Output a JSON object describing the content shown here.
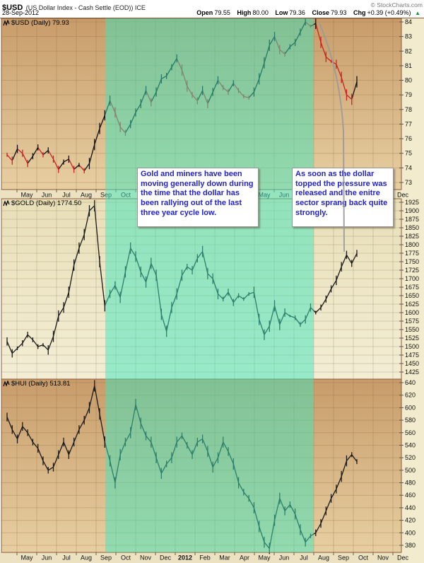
{
  "header": {
    "symbol": "$USD",
    "description": "(US Dollar Index - Cash Settle (EOD)) ICE",
    "copyright": "© StockCharts.com",
    "date": "28-Sep-2012",
    "quote": {
      "open_label": "Open",
      "open": "79.55",
      "high_label": "High",
      "high": "80.00",
      "low_label": "Low",
      "low": "79.36",
      "close_label": "Close",
      "close": "79.93",
      "chg_label": "Chg",
      "chg": "+0.39 (+0.49%)",
      "direction": "up"
    }
  },
  "annotations": {
    "box1_text": "Gold and miners have been moving generally down during the time that the dollar has been rallying out of the last three year cycle low.",
    "box2_text": "As soon as the dollar topped the pressure was released and the enitre sector sprang back quite strongly.",
    "text_color": "#2323cd",
    "highlight_band": {
      "from": "mid-Sep-2011",
      "to": "Aug-2012",
      "color": "rgba(62,230,190,0.5)"
    },
    "pointer_line": {
      "desc": "gray curve from dollar top down to gold breakout",
      "color": "#9a9a9a"
    }
  },
  "colors": {
    "tan_top": "#c89c6a",
    "tan_bottom": "#e7cfa2",
    "cream_top": "#e8dfb8",
    "cream_bottom": "#f3edd5",
    "axis_row_bg": "#ece2c2",
    "label_col_bg": "#f2ebcd",
    "border": "#8d5a36",
    "grid_tan": "rgba(140,108,60,0.30)",
    "grid_cream": "rgba(148,138,92,0.32)",
    "candle_up": "#111111",
    "candle_down": "#cc2222",
    "candle_dark": "#1a1a1a",
    "tick_text": "#111111"
  },
  "x_axis": {
    "months": [
      "May",
      "Jun",
      "Jul",
      "Aug",
      "Sep",
      "Oct",
      "Nov",
      "Dec",
      "2012",
      "Feb",
      "Mar",
      "Apr",
      "May",
      "Jun",
      "Jul",
      "Aug",
      "Sep",
      "Oct",
      "Nov",
      "Dec"
    ],
    "bold_index": 8
  },
  "chart_data": [
    {
      "type": "candlestick",
      "panel_label": "$USD (Daily) 79.93",
      "symbol": "$USD",
      "last": 79.93,
      "ylim": [
        72.8,
        84.25
      ],
      "yticks": [
        84,
        83,
        82,
        81,
        80,
        79,
        78,
        77,
        76,
        75,
        74,
        73
      ],
      "x_span": [
        "May-2011",
        "28-Sep-2012"
      ],
      "legend_position": "top-left",
      "grid": true,
      "values": [
        74.9,
        74.5,
        75.3,
        75.0,
        74.3,
        74.8,
        75.4,
        74.9,
        75.2,
        74.6,
        73.9,
        74.4,
        74.6,
        73.9,
        74.2,
        73.8,
        74.3,
        75.6,
        76.7,
        77.6,
        78.6,
        77.8,
        76.8,
        76.4,
        77.0,
        77.8,
        78.4,
        79.3,
        78.5,
        79.2,
        80.1,
        80.3,
        80.9,
        81.5,
        80.7,
        79.6,
        79.0,
        78.6,
        79.3,
        78.4,
        79.2,
        80.0,
        79.5,
        79.2,
        79.8,
        79.3,
        78.9,
        78.8,
        79.2,
        80.1,
        81.2,
        82.4,
        83.0,
        82.1,
        81.8,
        82.3,
        82.6,
        83.3,
        84.0,
        83.7,
        83.9,
        82.6,
        81.6,
        81.3,
        81.1,
        80.2,
        79.0,
        78.7,
        79.9
      ]
    },
    {
      "type": "candlestick",
      "panel_label": "$GOLD (Daily) 1774.50",
      "symbol": "$GOLD",
      "last": 1774.5,
      "ylim": [
        1410,
        1937
      ],
      "yticks": [
        1925,
        1900,
        1875,
        1850,
        1825,
        1800,
        1775,
        1750,
        1725,
        1700,
        1675,
        1650,
        1625,
        1600,
        1575,
        1550,
        1525,
        1500,
        1475,
        1450,
        1425
      ],
      "x_span": [
        "May-2011",
        "28-Sep-2012"
      ],
      "legend_position": "top-left",
      "grid": true,
      "values": [
        1515,
        1480,
        1495,
        1510,
        1535,
        1520,
        1500,
        1505,
        1490,
        1530,
        1590,
        1615,
        1660,
        1740,
        1790,
        1830,
        1900,
        1915,
        1750,
        1620,
        1655,
        1680,
        1645,
        1720,
        1790,
        1765,
        1720,
        1690,
        1745,
        1710,
        1595,
        1545,
        1615,
        1655,
        1710,
        1735,
        1725,
        1760,
        1780,
        1715,
        1700,
        1655,
        1640,
        1660,
        1630,
        1650,
        1640,
        1655,
        1660,
        1580,
        1535,
        1560,
        1620,
        1565,
        1600,
        1590,
        1585,
        1565,
        1580,
        1615,
        1600,
        1615,
        1640,
        1670,
        1695,
        1735,
        1770,
        1745,
        1774.5
      ]
    },
    {
      "type": "candlestick",
      "panel_label": "$HUI (Daily) 513.81",
      "symbol": "$HUI",
      "last": 513.81,
      "ylim": [
        372,
        646
      ],
      "yticks": [
        640,
        620,
        600,
        580,
        560,
        540,
        520,
        500,
        480,
        460,
        440,
        420,
        400,
        380
      ],
      "x_span": [
        "May-2011",
        "28-Sep-2012"
      ],
      "legend_position": "top-left",
      "grid": true,
      "values": [
        585,
        565,
        550,
        570,
        560,
        545,
        535,
        515,
        500,
        505,
        525,
        545,
        525,
        545,
        565,
        580,
        600,
        635,
        590,
        545,
        515,
        480,
        525,
        545,
        560,
        605,
        575,
        555,
        545,
        520,
        495,
        510,
        520,
        545,
        555,
        540,
        525,
        545,
        550,
        530,
        505,
        520,
        545,
        530,
        510,
        480,
        465,
        455,
        440,
        410,
        385,
        375,
        420,
        455,
        435,
        445,
        430,
        405,
        385,
        395,
        400,
        415,
        435,
        455,
        470,
        490,
        515,
        525,
        513.8
      ]
    }
  ]
}
